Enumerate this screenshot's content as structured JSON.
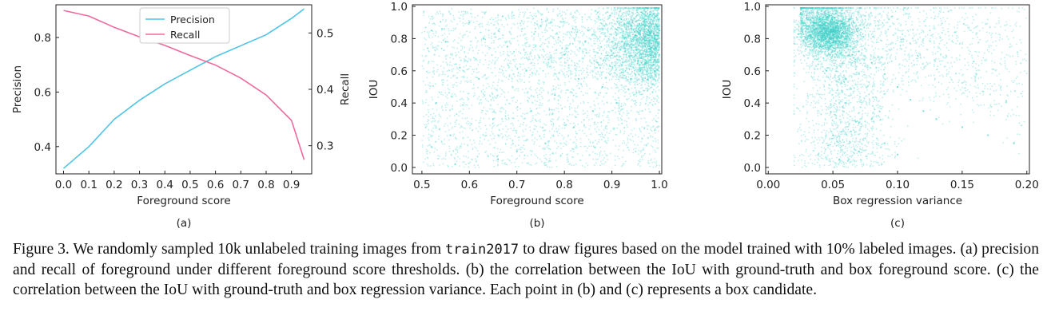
{
  "chart_data": [
    {
      "type": "line",
      "panel_label": "(a)",
      "xlabel": "Foreground score",
      "ylabel_left": "Precision",
      "ylabel_right": "Recall",
      "xlim": [
        -0.03,
        0.98
      ],
      "ylim_left": [
        0.3,
        0.92
      ],
      "ylim_right": [
        0.25,
        0.55
      ],
      "xticks": [
        0.0,
        0.1,
        0.2,
        0.3,
        0.4,
        0.5,
        0.6,
        0.7,
        0.8,
        0.9
      ],
      "yticks_left": [
        0.4,
        0.6,
        0.8
      ],
      "yticks_right": [
        0.3,
        0.4,
        0.5
      ],
      "legend_position": "top-center",
      "series": [
        {
          "name": "Precision",
          "axis": "left",
          "color": "#4fc3e6",
          "x": [
            0.0,
            0.1,
            0.2,
            0.3,
            0.4,
            0.5,
            0.6,
            0.7,
            0.8,
            0.9,
            0.95
          ],
          "y": [
            0.32,
            0.4,
            0.5,
            0.57,
            0.63,
            0.68,
            0.73,
            0.77,
            0.81,
            0.87,
            0.905
          ]
        },
        {
          "name": "Recall",
          "axis": "right",
          "color": "#ee6a9c",
          "x": [
            0.0,
            0.1,
            0.2,
            0.3,
            0.4,
            0.5,
            0.6,
            0.7,
            0.8,
            0.9,
            0.95
          ],
          "y": [
            0.54,
            0.53,
            0.51,
            0.493,
            0.478,
            0.46,
            0.443,
            0.42,
            0.39,
            0.345,
            0.275
          ]
        }
      ]
    },
    {
      "type": "scatter",
      "panel_label": "(b)",
      "xlabel": "Foreground score",
      "ylabel": "IOU",
      "xlim": [
        0.48,
        1.005
      ],
      "ylim": [
        -0.04,
        1.01
      ],
      "xticks": [
        0.5,
        0.6,
        0.7,
        0.8,
        0.9,
        1.0
      ],
      "yticks": [
        0.0,
        0.2,
        0.4,
        0.6,
        0.8,
        1.0
      ],
      "color": "#40d0c8",
      "points": [
        [
          0.52,
          0.85
        ],
        [
          0.55,
          0.78
        ],
        [
          0.58,
          0.62
        ],
        [
          0.53,
          0.4
        ],
        [
          0.56,
          0.2
        ],
        [
          0.6,
          0.9
        ],
        [
          0.62,
          0.55
        ],
        [
          0.65,
          0.3
        ],
        [
          0.68,
          0.75
        ],
        [
          0.7,
          0.1
        ],
        [
          0.72,
          0.6
        ],
        [
          0.75,
          0.88
        ],
        [
          0.78,
          0.45
        ],
        [
          0.8,
          0.7
        ],
        [
          0.82,
          0.25
        ],
        [
          0.85,
          0.85
        ],
        [
          0.87,
          0.65
        ],
        [
          0.88,
          0.5
        ],
        [
          0.9,
          0.78
        ],
        [
          0.92,
          0.92
        ],
        [
          0.93,
          0.7
        ],
        [
          0.95,
          0.82
        ],
        [
          0.96,
          0.6
        ],
        [
          0.97,
          0.88
        ],
        [
          0.98,
          0.75
        ],
        [
          0.99,
          0.93
        ],
        [
          0.99,
          0.8
        ],
        [
          1.0,
          0.85
        ],
        [
          1.0,
          0.7
        ],
        [
          0.98,
          0.95
        ],
        [
          0.97,
          0.65
        ],
        [
          0.94,
          0.55
        ],
        [
          0.91,
          0.4
        ],
        [
          0.86,
          0.35
        ],
        [
          0.76,
          0.15
        ],
        [
          0.66,
          0.05
        ],
        [
          0.57,
          0.02
        ],
        [
          0.63,
          0.8
        ],
        [
          0.73,
          0.35
        ],
        [
          0.83,
          0.55
        ]
      ]
    },
    {
      "type": "scatter",
      "panel_label": "(c)",
      "xlabel": "Box regression variance",
      "ylabel": "IOU",
      "xlim": [
        -0.002,
        0.202
      ],
      "ylim": [
        -0.04,
        1.01
      ],
      "xticks": [
        0.0,
        0.05,
        0.1,
        0.15,
        0.2
      ],
      "xtick_labels": [
        "0.00",
        "0.05",
        "0.10",
        "0.15",
        "0.20"
      ],
      "yticks": [
        0.0,
        0.2,
        0.4,
        0.6,
        0.8,
        1.0
      ],
      "color": "#40d0c8",
      "points": [
        [
          0.03,
          0.93
        ],
        [
          0.035,
          0.9
        ],
        [
          0.04,
          0.88
        ],
        [
          0.045,
          0.85
        ],
        [
          0.05,
          0.82
        ],
        [
          0.055,
          0.78
        ],
        [
          0.06,
          0.75
        ],
        [
          0.065,
          0.7
        ],
        [
          0.04,
          0.92
        ],
        [
          0.05,
          0.87
        ],
        [
          0.06,
          0.8
        ],
        [
          0.07,
          0.72
        ],
        [
          0.08,
          0.65
        ],
        [
          0.09,
          0.58
        ],
        [
          0.1,
          0.5
        ],
        [
          0.11,
          0.42
        ],
        [
          0.12,
          0.35
        ],
        [
          0.13,
          0.3
        ],
        [
          0.15,
          0.25
        ],
        [
          0.17,
          0.2
        ],
        [
          0.19,
          0.15
        ],
        [
          0.06,
          0.4
        ],
        [
          0.05,
          0.2
        ],
        [
          0.07,
          0.1
        ],
        [
          0.055,
          0.05
        ],
        [
          0.08,
          0.3
        ],
        [
          0.09,
          0.15
        ],
        [
          0.1,
          0.08
        ],
        [
          0.025,
          0.95
        ],
        [
          0.03,
          0.8
        ],
        [
          0.045,
          0.6
        ],
        [
          0.06,
          0.55
        ]
      ]
    }
  ],
  "caption": {
    "part1": "Figure 3. We randomly sampled 10k unlabeled training images from ",
    "code": "train2017",
    "part2": " to draw figures based on the model trained with 10% labeled images. (a) precision and recall of foreground under different foreground score thresholds. (b) the correlation between the IoU with ground-truth and box foreground score. (c) the correlation between the IoU with ground-truth and box regression variance. Each point in (b) and (c) represents a box candidate."
  }
}
